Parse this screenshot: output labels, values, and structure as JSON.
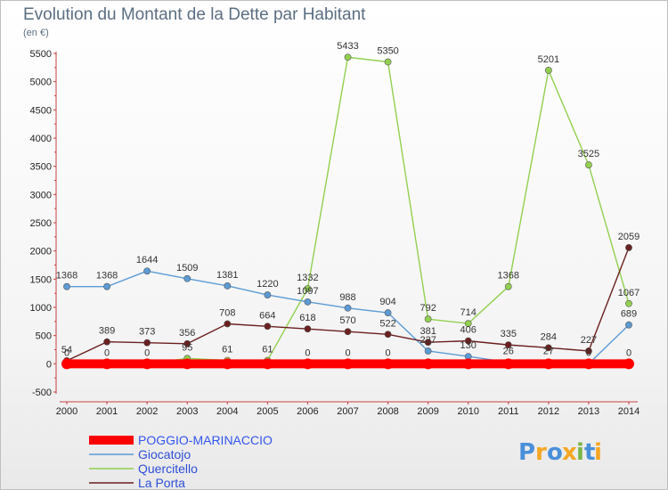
{
  "chart_data": {
    "type": "line",
    "title": "Evolution du Montant de la Dette par Habitant",
    "subtitle": "(en €)",
    "x": [
      "2000",
      "2001",
      "2002",
      "2003",
      "2004",
      "2005",
      "2006",
      "2007",
      "2008",
      "2009",
      "2010",
      "2011",
      "2012",
      "2013",
      "2014"
    ],
    "ylim": [
      -500,
      5500
    ],
    "yticks": [
      -500,
      0,
      500,
      1000,
      1500,
      2000,
      2500,
      3000,
      3500,
      4000,
      4500,
      5000,
      5500
    ],
    "grid": false,
    "legend_position": "bottom-left",
    "series": [
      {
        "name": "POGGIO-MARINACCIO",
        "color": "#ff0000",
        "values": [
          0,
          0,
          0,
          0,
          0,
          0,
          0,
          0,
          0,
          0,
          0,
          0,
          0,
          0,
          0
        ],
        "labels": [
          "",
          "",
          "",
          "",
          "",
          "",
          "0",
          "0",
          "0",
          "",
          "",
          "",
          "",
          "",
          "0"
        ]
      },
      {
        "name": "Giocatojo",
        "color": "#5b9bd5",
        "values": [
          1368,
          1368,
          1644,
          1509,
          1381,
          1220,
          1097,
          988,
          904,
          227,
          130,
          26,
          27,
          0,
          689
        ],
        "labels": [
          "1368",
          "1368",
          "1644",
          "1509",
          "1381",
          "1220",
          "1097",
          "988",
          "904",
          "227",
          "130",
          "26",
          "27",
          "0",
          "689"
        ]
      },
      {
        "name": "Quercitello",
        "color": "#92d050",
        "values": [
          0,
          0,
          0,
          95,
          61,
          61,
          1332,
          5433,
          5350,
          792,
          714,
          1368,
          5201,
          3525,
          1067
        ],
        "labels": [
          "0",
          "0",
          "0",
          "95",
          "61",
          "61",
          "1332",
          "5433",
          "5350",
          "792",
          "714",
          "1368",
          "5201",
          "3525",
          "1067"
        ]
      },
      {
        "name": "La Porta",
        "color": "#6b1f1f",
        "values": [
          54,
          389,
          373,
          356,
          708,
          664,
          618,
          570,
          522,
          381,
          406,
          335,
          284,
          227,
          2059
        ],
        "labels": [
          "54",
          "389",
          "373",
          "356",
          "708",
          "664",
          "618",
          "570",
          "522",
          "381",
          "406",
          "335",
          "284",
          "227",
          "2059"
        ]
      }
    ]
  },
  "brand": {
    "letters": [
      "P",
      "r",
      "o",
      "x",
      "i",
      "t",
      "i"
    ],
    "colors": [
      "#4a90d9",
      "#f5a623",
      "#4a90d9",
      "#f5a623",
      "#7ab648",
      "#4a90d9",
      "#f5a623"
    ]
  }
}
